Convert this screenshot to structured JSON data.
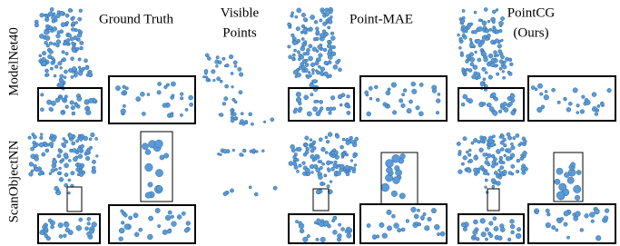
{
  "columns": [
    [
      "Ground Truth"
    ],
    [
      "Visible",
      "Points"
    ],
    [
      "Point-MAE"
    ],
    [
      "PointCG",
      "(Ours)"
    ]
  ],
  "rows": [
    "ModelNet40",
    "ScanObjectNN"
  ]
}
